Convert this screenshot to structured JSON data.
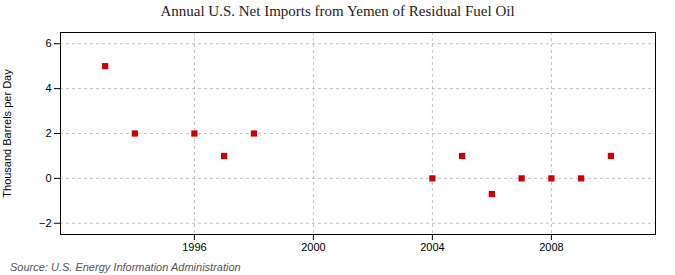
{
  "chart_data": {
    "type": "scatter",
    "title": "Annual U.S. Net Imports from Yemen of Residual Fuel Oil",
    "ylabel": "Thousand Barrels per Day",
    "source": "Source: U.S. Energy Information Administration",
    "x": [
      1993,
      1994,
      1996,
      1997,
      1998,
      2004,
      2005,
      2006,
      2007,
      2008,
      2009,
      2010
    ],
    "values": [
      5,
      2,
      2,
      1,
      2,
      0,
      1,
      -0.7,
      0,
      0,
      0,
      1
    ],
    "color": "#cc0000",
    "marker": "square",
    "xlim": [
      1991.5,
      2011.5
    ],
    "xticks": [
      1996,
      2000,
      2004,
      2008
    ],
    "ylim": [
      -2.5,
      6.5
    ],
    "yticks": [
      -2,
      0,
      2,
      4,
      6
    ],
    "grid": true
  }
}
